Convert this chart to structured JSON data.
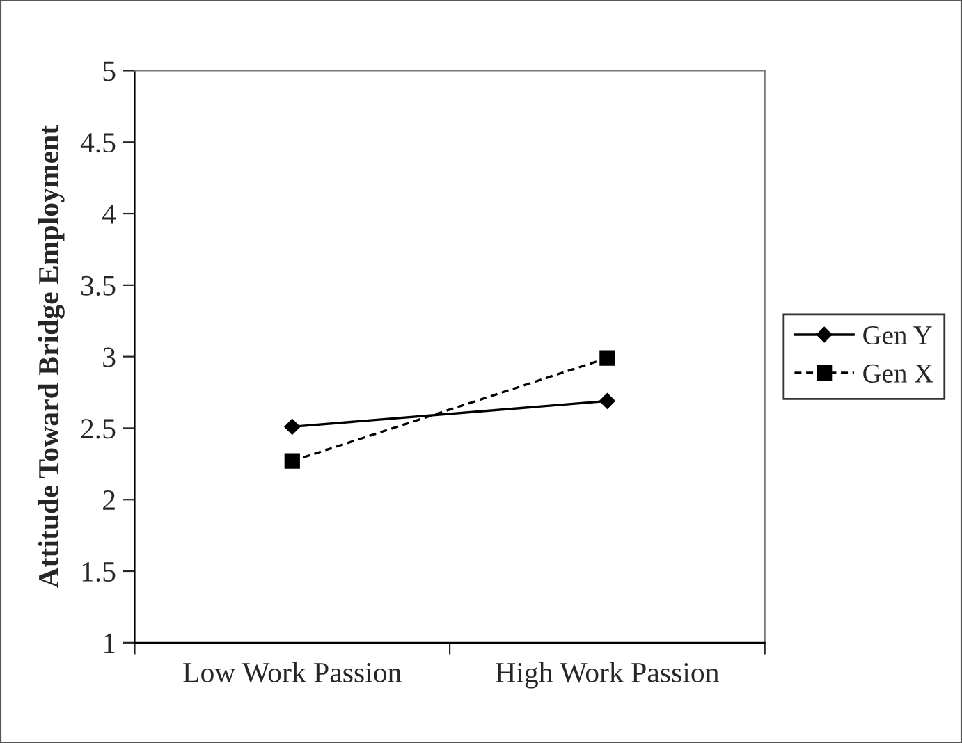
{
  "chart_data": {
    "type": "line",
    "ylabel": "Attitude Toward Bridge Employment",
    "categories": [
      "Low Work Passion",
      "High Work Passion"
    ],
    "series": [
      {
        "name": "Gen Y",
        "color": "#000000",
        "values": [
          2.51,
          2.69
        ],
        "marker": "diamond",
        "line_style": "solid"
      },
      {
        "name": "Gen X",
        "color": "#000000",
        "values": [
          2.27,
          2.99
        ],
        "marker": "square",
        "line_style": "dashed"
      }
    ],
    "ylim": [
      1,
      5
    ],
    "yticks": [
      1,
      1.5,
      2,
      2.5,
      3,
      3.5,
      4,
      4.5,
      5
    ],
    "grid": false,
    "legend": "right"
  }
}
